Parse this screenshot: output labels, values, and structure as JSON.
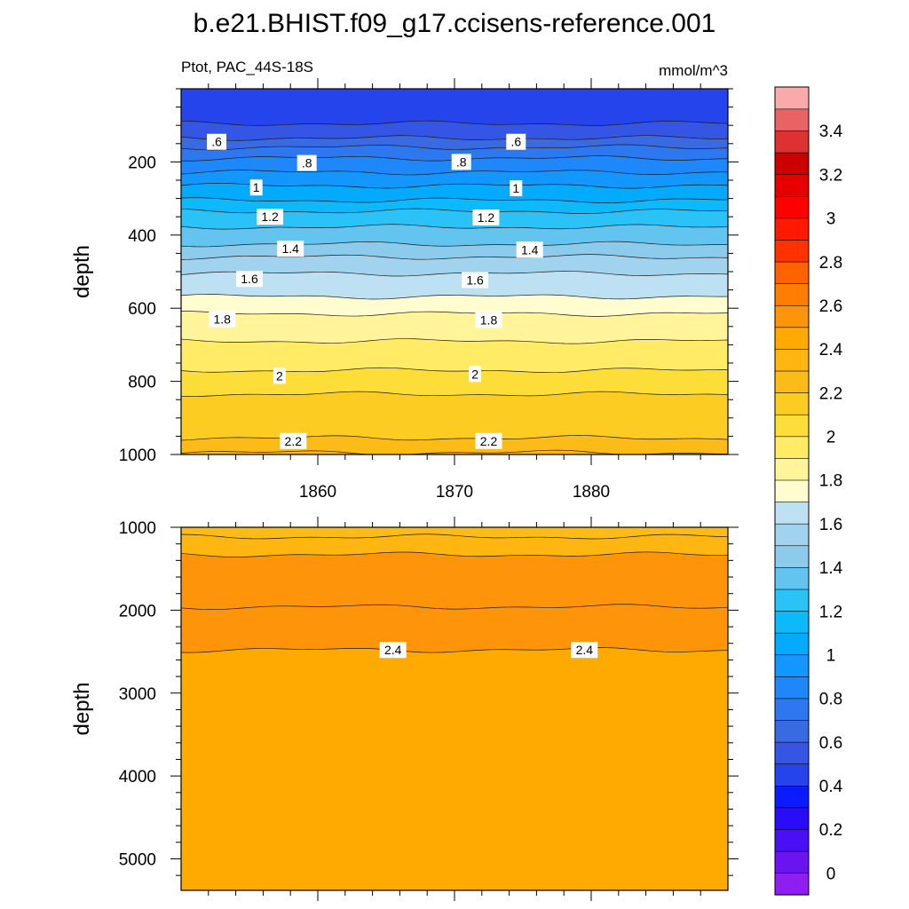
{
  "chart_data": {
    "type": "contour",
    "title": "b.e21.BHIST.f09_g17.ccisens-reference.001",
    "variable_label": "Ptot, PAC_44S-18S",
    "units": "mmol/m^3",
    "xlabel": "",
    "ylabel": "depth",
    "x_range": [
      1850,
      1890
    ],
    "x_ticks": [
      "1860",
      "1870",
      "1880"
    ],
    "x_tick_values": [
      1860,
      1870,
      1880
    ],
    "upper_panel": {
      "ylim": [
        0,
        1000
      ],
      "y_ticks": [
        "200",
        "400",
        "600",
        "800",
        "1000"
      ],
      "y_tick_values": [
        200,
        400,
        600,
        800,
        1000
      ],
      "contour_labels": [
        {
          "text": ".6",
          "year": 1852.6,
          "depth": 145
        },
        {
          "text": ".6",
          "year": 1874.5,
          "depth": 145
        },
        {
          "text": ".8",
          "year": 1859.2,
          "depth": 203
        },
        {
          "text": ".8",
          "year": 1870.5,
          "depth": 200
        },
        {
          "text": "1",
          "year": 1855.5,
          "depth": 270
        },
        {
          "text": "1",
          "year": 1874.5,
          "depth": 272
        },
        {
          "text": "1.2",
          "year": 1856.5,
          "depth": 350
        },
        {
          "text": "1.2",
          "year": 1872.3,
          "depth": 352
        },
        {
          "text": "1.4",
          "year": 1858.0,
          "depth": 437
        },
        {
          "text": "1.4",
          "year": 1875.5,
          "depth": 440
        },
        {
          "text": "1.6",
          "year": 1855.0,
          "depth": 520
        },
        {
          "text": "1.6",
          "year": 1871.5,
          "depth": 523
        },
        {
          "text": "1.8",
          "year": 1853.0,
          "depth": 630
        },
        {
          "text": "1.8",
          "year": 1872.5,
          "depth": 632
        },
        {
          "text": "2",
          "year": 1857.2,
          "depth": 785
        },
        {
          "text": "2",
          "year": 1871.5,
          "depth": 780
        },
        {
          "text": "2.2",
          "year": 1858.2,
          "depth": 963
        },
        {
          "text": "2.2",
          "year": 1872.5,
          "depth": 963
        }
      ],
      "contour_depths": [
        {
          "level": 0.5,
          "depth": 95
        },
        {
          "level": 0.6,
          "depth": 135
        },
        {
          "level": 0.7,
          "depth": 160
        },
        {
          "level": 0.8,
          "depth": 190
        },
        {
          "level": 0.9,
          "depth": 228
        },
        {
          "level": 1.0,
          "depth": 265
        },
        {
          "level": 1.1,
          "depth": 305
        },
        {
          "level": 1.2,
          "depth": 335
        },
        {
          "level": 1.3,
          "depth": 378
        },
        {
          "level": 1.4,
          "depth": 425
        },
        {
          "level": 1.5,
          "depth": 460
        },
        {
          "level": 1.6,
          "depth": 505
        },
        {
          "level": 1.7,
          "depth": 568
        },
        {
          "level": 1.8,
          "depth": 615
        },
        {
          "level": 1.9,
          "depth": 690
        },
        {
          "level": 2.0,
          "depth": 770
        },
        {
          "level": 2.1,
          "depth": 835
        },
        {
          "level": 2.2,
          "depth": 955
        },
        {
          "level": 2.3,
          "depth": 995
        }
      ]
    },
    "lower_panel": {
      "ylim": [
        1000,
        5380
      ],
      "y_ticks": [
        "1000",
        "2000",
        "3000",
        "4000",
        "5000"
      ],
      "y_tick_values": [
        1000,
        2000,
        3000,
        4000,
        5000
      ],
      "contour_labels": [
        {
          "text": "2.4",
          "year": 1865.5,
          "depth": 2480
        },
        {
          "text": "2.4",
          "year": 1879.5,
          "depth": 2480
        }
      ],
      "contour_depths": [
        {
          "level": 2.3,
          "depth": 1115
        },
        {
          "level": 2.5,
          "depth": 1330
        },
        {
          "level": 2.5,
          "depth": 1960
        },
        {
          "level": 2.4,
          "depth": 2480
        }
      ]
    },
    "colorbar": {
      "bins": [
        {
          "lo": -0.1,
          "hi": 0.0,
          "color": "#8f1ff0"
        },
        {
          "lo": 0.0,
          "hi": 0.1,
          "color": "#6a14f0"
        },
        {
          "lo": 0.1,
          "hi": 0.2,
          "color": "#4a0ff4"
        },
        {
          "lo": 0.2,
          "hi": 0.3,
          "color": "#2a0cf8"
        },
        {
          "lo": 0.3,
          "hi": 0.4,
          "color": "#0a1cff"
        },
        {
          "lo": 0.4,
          "hi": 0.5,
          "color": "#2644ec"
        },
        {
          "lo": 0.5,
          "hi": 0.6,
          "color": "#3556e4"
        },
        {
          "lo": 0.6,
          "hi": 0.7,
          "color": "#3a6ae2"
        },
        {
          "lo": 0.7,
          "hi": 0.8,
          "color": "#2d78ef"
        },
        {
          "lo": 0.8,
          "hi": 0.9,
          "color": "#1e88fb"
        },
        {
          "lo": 0.9,
          "hi": 1.0,
          "color": "#1396fd"
        },
        {
          "lo": 1.0,
          "hi": 1.1,
          "color": "#04aafc"
        },
        {
          "lo": 1.1,
          "hi": 1.2,
          "color": "#0cb9fb"
        },
        {
          "lo": 1.2,
          "hi": 1.3,
          "color": "#2bc3f7"
        },
        {
          "lo": 1.3,
          "hi": 1.4,
          "color": "#63c4ef"
        },
        {
          "lo": 1.4,
          "hi": 1.5,
          "color": "#8ccbeb"
        },
        {
          "lo": 1.5,
          "hi": 1.6,
          "color": "#a2d3ee"
        },
        {
          "lo": 1.6,
          "hi": 1.7,
          "color": "#bde0f3"
        },
        {
          "lo": 1.7,
          "hi": 1.8,
          "color": "#fffccf"
        },
        {
          "lo": 1.8,
          "hi": 1.9,
          "color": "#fff49a"
        },
        {
          "lo": 1.9,
          "hi": 2.0,
          "color": "#ffeb66"
        },
        {
          "lo": 2.0,
          "hi": 2.1,
          "color": "#fddd38"
        },
        {
          "lo": 2.1,
          "hi": 2.2,
          "color": "#fccc22"
        },
        {
          "lo": 2.2,
          "hi": 2.3,
          "color": "#fcbb16"
        },
        {
          "lo": 2.3,
          "hi": 2.4,
          "color": "#ffb610"
        },
        {
          "lo": 2.4,
          "hi": 2.5,
          "color": "#ffaa00"
        },
        {
          "lo": 2.5,
          "hi": 2.6,
          "color": "#fe940a"
        },
        {
          "lo": 2.6,
          "hi": 2.7,
          "color": "#ff7d00"
        },
        {
          "lo": 2.7,
          "hi": 2.8,
          "color": "#ff6300"
        },
        {
          "lo": 2.8,
          "hi": 2.9,
          "color": "#ff3200"
        },
        {
          "lo": 2.9,
          "hi": 3.0,
          "color": "#ff1900"
        },
        {
          "lo": 3.0,
          "hi": 3.1,
          "color": "#ff0000"
        },
        {
          "lo": 3.1,
          "hi": 3.2,
          "color": "#e60000"
        },
        {
          "lo": 3.2,
          "hi": 3.3,
          "color": "#cc0000"
        },
        {
          "lo": 3.3,
          "hi": 3.4,
          "color": "#dc3232"
        },
        {
          "lo": 3.4,
          "hi": 3.5,
          "color": "#e86464"
        },
        {
          "lo": 3.5,
          "hi": 3.6,
          "color": "#fbaaaa"
        }
      ],
      "labels": [
        {
          "text": "0",
          "value": 0.0
        },
        {
          "text": "0.2",
          "value": 0.2
        },
        {
          "text": "0.4",
          "value": 0.4
        },
        {
          "text": "0.6",
          "value": 0.6
        },
        {
          "text": "0.8",
          "value": 0.8
        },
        {
          "text": "1",
          "value": 1.0
        },
        {
          "text": "1.2",
          "value": 1.2
        },
        {
          "text": "1.4",
          "value": 1.4
        },
        {
          "text": "1.6",
          "value": 1.6
        },
        {
          "text": "1.8",
          "value": 1.8
        },
        {
          "text": "2",
          "value": 2.0
        },
        {
          "text": "2.2",
          "value": 2.2
        },
        {
          "text": "2.4",
          "value": 2.4
        },
        {
          "text": "2.6",
          "value": 2.6
        },
        {
          "text": "2.8",
          "value": 2.8
        },
        {
          "text": "3",
          "value": 3.0
        },
        {
          "text": "3.2",
          "value": 3.2
        },
        {
          "text": "3.4",
          "value": 3.4
        }
      ]
    }
  }
}
